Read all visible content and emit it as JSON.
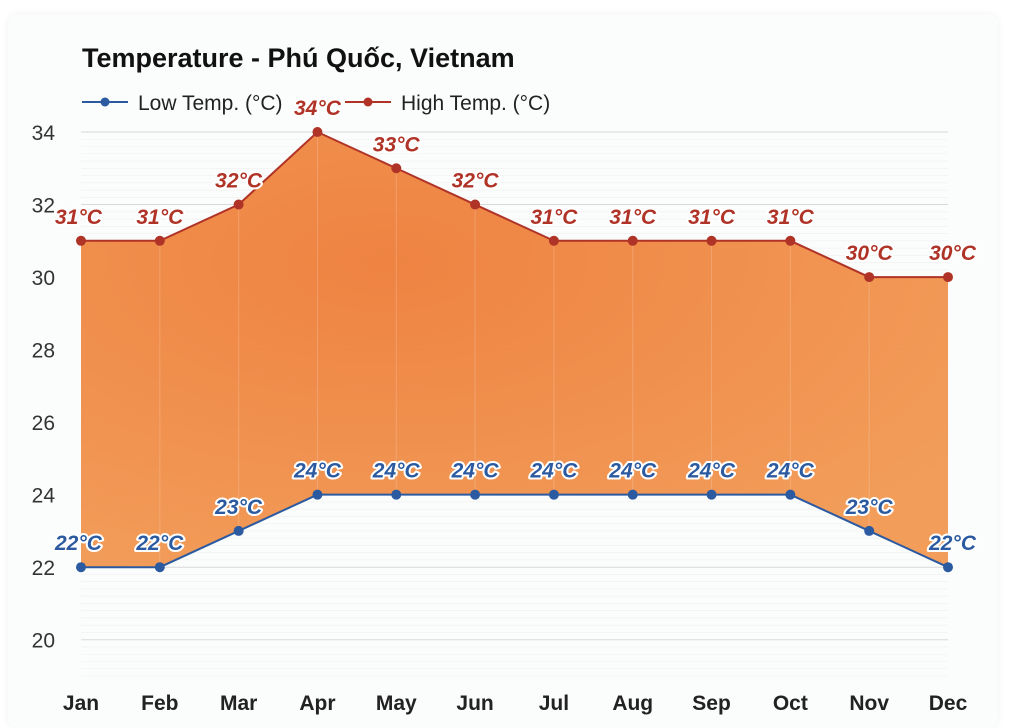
{
  "chart_data": {
    "type": "area",
    "title": "Temperature - Phú Quốc, Vietnam",
    "categories": [
      "Jan",
      "Feb",
      "Mar",
      "Apr",
      "May",
      "Jun",
      "Jul",
      "Aug",
      "Sep",
      "Oct",
      "Nov",
      "Dec"
    ],
    "series": [
      {
        "name": "Low Temp. (°C)",
        "color": "#2c5aa0",
        "values": [
          22,
          22,
          23,
          24,
          24,
          24,
          24,
          24,
          24,
          24,
          23,
          22
        ],
        "labels": [
          "22°C",
          "22°C",
          "23°C",
          "24°C",
          "24°C",
          "24°C",
          "24°C",
          "24°C",
          "24°C",
          "24°C",
          "23°C",
          "22°C"
        ]
      },
      {
        "name": "High Temp. (°C)",
        "color": "#b03327",
        "values": [
          31,
          31,
          32,
          34,
          33,
          32,
          31,
          31,
          31,
          31,
          30,
          30
        ],
        "labels": [
          "31°C",
          "31°C",
          "32°C",
          "34°C",
          "33°C",
          "32°C",
          "31°C",
          "31°C",
          "31°C",
          "31°C",
          "30°C",
          "30°C"
        ]
      }
    ],
    "fill_color": "#f0883e",
    "ylim": [
      19,
      34
    ],
    "yticks": [
      "20",
      "22",
      "24",
      "26",
      "28",
      "30",
      "32",
      "34"
    ],
    "grid": true,
    "legend": "top-left"
  }
}
